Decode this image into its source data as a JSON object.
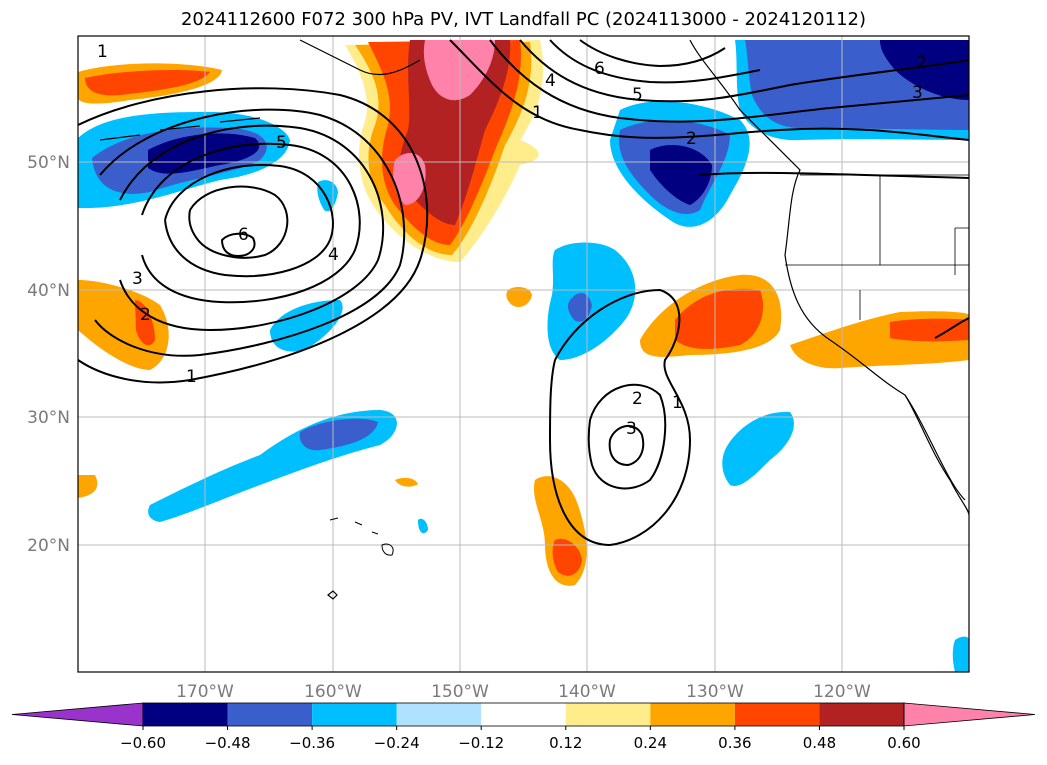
{
  "title": "2024112600 F072 300 hPa PV, IVT Landfall PC (2024113000 - 2024120112)",
  "lat_labels": [
    "50°N",
    "40°N",
    "30°N",
    "20°N"
  ],
  "lon_labels": [
    "170°W",
    "160°W",
    "150°W",
    "140°W",
    "130°W",
    "120°W"
  ],
  "colorbar": {
    "ticks": [
      "−0.60",
      "−0.48",
      "−0.36",
      "−0.24",
      "−0.12",
      "0.12",
      "0.24",
      "0.36",
      "0.48",
      "0.60"
    ],
    "colors": [
      "#9933cc",
      "#000080",
      "#3a5fcd",
      "#00bfff",
      "#b0e2ff",
      "#ffffff",
      "#ffec8b",
      "#ffa500",
      "#ff4500",
      "#b22222",
      "#ff82ab"
    ]
  },
  "contour_labels": [
    "1",
    "4",
    "6",
    "5",
    "1",
    "2",
    "5",
    "6",
    "4",
    "3",
    "2",
    "1",
    "2",
    "3",
    "1",
    "3",
    "2"
  ]
}
